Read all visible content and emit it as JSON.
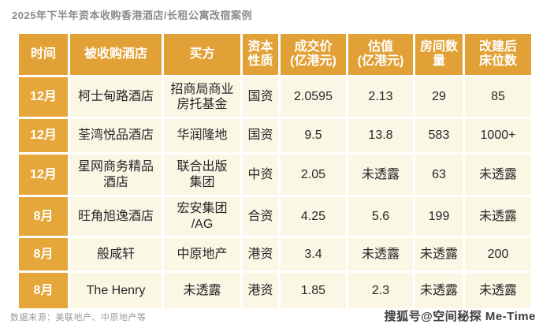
{
  "page": {
    "title": "2025年下半年资本收购香港酒店/长租公寓改宿案例",
    "source_note": "数据来源：美联地产、中原地产等",
    "watermark": "搜狐号@空间秘探 Me-Time"
  },
  "colors": {
    "page_bg": "#ffffff",
    "header_bg": "#e2a136",
    "time_cell_bg": "#e5a63a",
    "cell_bg": "#fbf7e5",
    "header_text": "#ffffff",
    "cell_text": "#262626",
    "title_text": "#8b8b8b",
    "source_text": "#9b9b9b",
    "gap_color": "#ffffff"
  },
  "chart_data": {
    "type": "table",
    "title": "2025年下半年资本收购香港酒店/长租公寓改宿案例",
    "columns": [
      "时间",
      "被收购酒店",
      "买方",
      "资本性质",
      "成交价(亿港元)",
      "估值(亿港元)",
      "房间数量",
      "改建后床位数"
    ],
    "rows": [
      [
        "12月",
        "柯士甸路酒店",
        "招商局商业房托基金",
        "国资",
        "2.0595",
        "2.13",
        "29",
        "85"
      ],
      [
        "12月",
        "荃湾悦品酒店",
        "华润隆地",
        "国资",
        "9.5",
        "13.8",
        "583",
        "1000+"
      ],
      [
        "12月",
        "星网商务精品酒店",
        "联合出版集团",
        "中资",
        "2.05",
        "未透露",
        "63",
        "未透露"
      ],
      [
        "8月",
        "旺角旭逸酒店",
        "宏安集团/AG",
        "合资",
        "4.25",
        "5.6",
        "199",
        "未透露"
      ],
      [
        "8月",
        "般咸轩",
        "中原地产",
        "港资",
        "3.4",
        "未透露",
        "未透露",
        "200"
      ],
      [
        "8月",
        "The Henry",
        "未透露",
        "港资",
        "1.85",
        "2.3",
        "未透露",
        "未透露"
      ]
    ]
  },
  "table": {
    "headers": {
      "time": "时间",
      "hotel": "被收购酒店",
      "buyer": "买方",
      "capital": "资本\n性质",
      "price": "成交价\n(亿港元)",
      "valuation": "估值\n(亿港元)",
      "rooms": "房间数\n量",
      "beds": "改建后\n床位数"
    },
    "rows": [
      {
        "time": "12月",
        "hotel": "柯士甸路酒店",
        "buyer": "招商局商业\n房托基金",
        "capital": "国资",
        "price": "2.0595",
        "valuation": "2.13",
        "rooms": "29",
        "beds": "85"
      },
      {
        "time": "12月",
        "hotel": "荃湾悦品酒店",
        "buyer": "华润隆地",
        "capital": "国资",
        "price": "9.5",
        "valuation": "13.8",
        "rooms": "583",
        "beds": "1000+"
      },
      {
        "time": "12月",
        "hotel": "星网商务精品\n酒店",
        "buyer": "联合出版\n集团",
        "capital": "中资",
        "price": "2.05",
        "valuation": "未透露",
        "rooms": "63",
        "beds": "未透露"
      },
      {
        "time": "8月",
        "hotel": "旺角旭逸酒店",
        "buyer": "宏安集团\n/AG",
        "capital": "合资",
        "price": "4.25",
        "valuation": "5.6",
        "rooms": "199",
        "beds": "未透露"
      },
      {
        "time": "8月",
        "hotel": "般咸轩",
        "buyer": "中原地产",
        "capital": "港资",
        "price": "3.4",
        "valuation": "未透露",
        "rooms": "未透露",
        "beds": "200"
      },
      {
        "time": "8月",
        "hotel": "The Henry",
        "buyer": "未透露",
        "capital": "港资",
        "price": "1.85",
        "valuation": "2.3",
        "rooms": "未透露",
        "beds": "未透露"
      }
    ]
  }
}
